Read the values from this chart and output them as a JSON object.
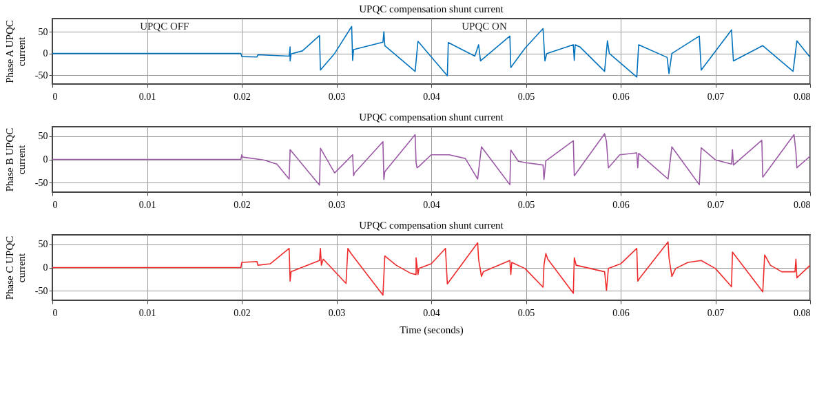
{
  "chart_data": [
    {
      "type": "line",
      "title": "UPQC compensation shunt current",
      "ylabel": "Phase A UPQC current",
      "xlim": [
        0,
        0.08
      ],
      "xticks": [
        0,
        0.01,
        0.02,
        0.03,
        0.04,
        0.05,
        0.06,
        0.07,
        0.08
      ],
      "ylim": [
        -70,
        80
      ],
      "yticks": [
        -50,
        0,
        50
      ],
      "grid": true,
      "annotations": [
        "UPQC OFF",
        "UPQC ON"
      ],
      "series": [
        {
          "color": "#0072bd",
          "x": [
            0,
            0.0199,
            0.02,
            0.0216,
            0.0217,
            0.025,
            0.0251,
            0.0251,
            0.0252,
            0.0264,
            0.0282,
            0.0283,
            0.0298,
            0.0316,
            0.0317,
            0.0318,
            0.0349,
            0.035,
            0.0351,
            0.0383,
            0.0386,
            0.0417,
            0.0418,
            0.0446,
            0.045,
            0.0452,
            0.0483,
            0.0484,
            0.0499,
            0.0518,
            0.052,
            0.0522,
            0.055,
            0.0551,
            0.0552,
            0.0557,
            0.0583,
            0.0586,
            0.0588,
            0.0617,
            0.0619,
            0.0649,
            0.0651,
            0.0654,
            0.0683,
            0.0685,
            0.0717,
            0.0719,
            0.075,
            0.0782,
            0.0786,
            0.08
          ],
          "values": [
            0,
            0,
            -7,
            -8,
            -3,
            -6,
            15,
            -17,
            -1,
            6,
            41,
            -38,
            0,
            62,
            -16,
            9,
            26,
            50,
            18,
            -41,
            28,
            -51,
            25,
            -6,
            20,
            -17,
            40,
            -32,
            12,
            57,
            -17,
            0,
            20,
            -16,
            20,
            15,
            -41,
            29,
            0,
            -54,
            20,
            -9,
            -46,
            0,
            40,
            -38,
            54,
            -17,
            18,
            -41,
            29,
            -9
          ]
        }
      ]
    },
    {
      "type": "line",
      "title": "UPQC compensation shunt current",
      "ylabel": "Phase B UPQC current",
      "xlim": [
        0,
        0.08
      ],
      "xticks": [
        0,
        0.01,
        0.02,
        0.03,
        0.04,
        0.05,
        0.06,
        0.07,
        0.08
      ],
      "ylim": [
        -70,
        70
      ],
      "yticks": [
        -50,
        0,
        50
      ],
      "grid": true,
      "series": [
        {
          "color": "#9b59a6",
          "x": [
            0,
            0.0199,
            0.02,
            0.0201,
            0.0223,
            0.0237,
            0.025,
            0.0251,
            0.0282,
            0.0283,
            0.0298,
            0.0317,
            0.0318,
            0.0319,
            0.0349,
            0.035,
            0.0351,
            0.0383,
            0.0384,
            0.0385,
            0.0387,
            0.04,
            0.0419,
            0.0436,
            0.0449,
            0.0453,
            0.0483,
            0.0484,
            0.0492,
            0.05,
            0.0518,
            0.0519,
            0.0521,
            0.055,
            0.0551,
            0.0583,
            0.0585,
            0.0587,
            0.0599,
            0.0617,
            0.0618,
            0.0619,
            0.065,
            0.0654,
            0.0683,
            0.0685,
            0.07,
            0.0717,
            0.0718,
            0.0719,
            0.0749,
            0.075,
            0.0783,
            0.0785,
            0.0786,
            0.08
          ],
          "values": [
            0,
            0,
            10,
            5,
            -1,
            -10,
            -42,
            21,
            -55,
            24,
            -29,
            10,
            -35,
            -29,
            38,
            -43,
            -26,
            53,
            -7,
            -18,
            -15,
            10,
            10,
            2,
            -42,
            27,
            -54,
            20,
            -4,
            -7,
            -12,
            -43,
            -3,
            40,
            -35,
            55,
            38,
            -18,
            10,
            14,
            -18,
            13,
            -42,
            27,
            -54,
            25,
            -1,
            -10,
            21,
            -12,
            41,
            -38,
            53,
            16,
            -18,
            7
          ]
        }
      ]
    },
    {
      "type": "line",
      "title": "UPQC compensation shunt current",
      "ylabel": "Phase C UPQC current",
      "xlabel": "Time (seconds)",
      "xlim": [
        0,
        0.08
      ],
      "xticks": [
        0,
        0.01,
        0.02,
        0.03,
        0.04,
        0.05,
        0.06,
        0.07,
        0.08
      ],
      "ylim": [
        -70,
        70
      ],
      "yticks": [
        -50,
        0,
        50
      ],
      "grid": true,
      "series": [
        {
          "color": "#ee2a2a",
          "x": [
            0,
            0.0199,
            0.02,
            0.0216,
            0.0217,
            0.023,
            0.025,
            0.0251,
            0.0252,
            0.0282,
            0.0283,
            0.0284,
            0.0286,
            0.031,
            0.0312,
            0.0315,
            0.0349,
            0.0351,
            0.0363,
            0.0378,
            0.0384,
            0.0384,
            0.0386,
            0.0387,
            0.04,
            0.0415,
            0.0417,
            0.0449,
            0.045,
            0.0453,
            0.0455,
            0.0483,
            0.0484,
            0.0485,
            0.0499,
            0.0518,
            0.0519,
            0.0521,
            0.0523,
            0.055,
            0.0551,
            0.0553,
            0.0583,
            0.0585,
            0.0587,
            0.06,
            0.0617,
            0.0618,
            0.062,
            0.065,
            0.0651,
            0.0654,
            0.0658,
            0.0671,
            0.0685,
            0.07,
            0.0717,
            0.0718,
            0.075,
            0.0752,
            0.0758,
            0.077,
            0.0784,
            0.0785,
            0.0786,
            0.08
          ],
          "values": [
            0,
            0,
            11,
            13,
            5,
            8,
            41,
            -29,
            -9,
            15,
            41,
            5,
            18,
            -34,
            41,
            31,
            -59,
            25,
            5,
            -12,
            -15,
            21,
            -15,
            -2,
            8,
            41,
            -35,
            53,
            18,
            -19,
            -9,
            15,
            -15,
            11,
            -2,
            -42,
            5,
            30,
            18,
            -55,
            21,
            5,
            -9,
            -49,
            -2,
            8,
            41,
            -29,
            -23,
            55,
            21,
            -19,
            -2,
            11,
            15,
            -2,
            -41,
            33,
            -52,
            27,
            5,
            -9,
            -9,
            18,
            -22,
            5
          ]
        }
      ]
    }
  ]
}
